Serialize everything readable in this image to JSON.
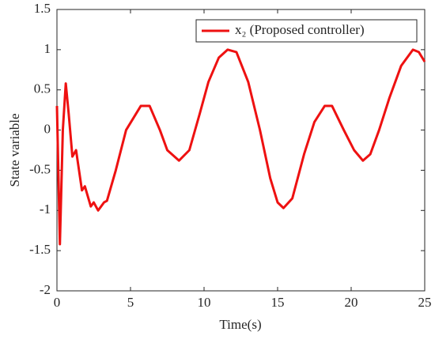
{
  "chart_data": {
    "type": "line",
    "xlabel": "Time(s)",
    "ylabel": "State variable",
    "x": [
      0,
      0.2,
      0.4,
      0.6,
      0.8,
      1.05,
      1.3,
      1.5,
      1.7,
      1.9,
      2.3,
      2.5,
      2.8,
      3.2,
      3.4,
      4,
      4.7,
      5.7,
      6.3,
      7,
      7.5,
      8.3,
      9,
      9.7,
      10.3,
      11,
      11.6,
      12.2,
      13,
      13.8,
      14.5,
      15,
      15.4,
      16,
      16.8,
      17.5,
      18.2,
      18.7,
      19.5,
      20.2,
      20.8,
      21.3,
      21.9,
      22.6,
      23.4,
      24.2,
      24.6,
      25
    ],
    "series": [
      {
        "name": "x₂ (Proposed controller)",
        "color": "#ee1111",
        "values": [
          0.3,
          -1.42,
          0,
          0.58,
          0.2,
          -0.33,
          -0.25,
          -0.5,
          -0.75,
          -0.7,
          -0.95,
          -0.9,
          -1.0,
          -0.9,
          -0.88,
          -0.5,
          0,
          0.3,
          0.3,
          0,
          -0.25,
          -0.38,
          -0.25,
          0.2,
          0.6,
          0.9,
          1.0,
          0.97,
          0.6,
          0,
          -0.6,
          -0.9,
          -0.97,
          -0.85,
          -0.3,
          0.1,
          0.3,
          0.3,
          0,
          -0.25,
          -0.38,
          -0.3,
          0,
          0.4,
          0.8,
          1.0,
          0.97,
          0.85
        ]
      }
    ],
    "xlim": [
      0,
      25
    ],
    "xticks": [
      0,
      5,
      10,
      15,
      20,
      25
    ],
    "ylim": [
      -2,
      1.5
    ],
    "yticks": [
      -2,
      -1.5,
      -1,
      -0.5,
      0,
      0.5,
      1,
      1.5
    ],
    "legend": "top-right"
  }
}
